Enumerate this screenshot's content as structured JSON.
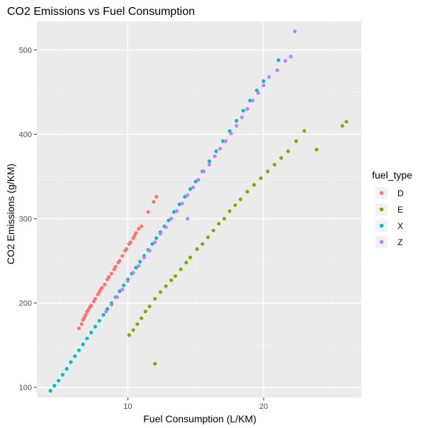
{
  "chart_data": {
    "type": "scatter",
    "title": "CO2 Emissions vs Fuel Consumption",
    "xlabel": "Fuel Consumption (L/KM)",
    "ylabel": "CO2 Emissions (g/KM)",
    "xlim": [
      3.3,
      27.2
    ],
    "ylim": [
      88,
      534
    ],
    "x_ticks": [
      10,
      20
    ],
    "x_minor_ticks": [
      5,
      15,
      25
    ],
    "y_ticks": [
      100,
      200,
      300,
      400,
      500
    ],
    "y_minor_ticks": [
      150,
      250,
      350,
      450
    ],
    "grid": true,
    "background": "#ebebeb",
    "legend": {
      "title": "fuel_type",
      "position": "right",
      "entries": [
        {
          "label": "D",
          "color": "#f8766d"
        },
        {
          "label": "E",
          "color": "#7cae00"
        },
        {
          "label": "X",
          "color": "#00bfc4"
        },
        {
          "label": "Z",
          "color": "#c77cff"
        }
      ]
    },
    "series": [
      {
        "name": "D",
        "color": "#f8766d",
        "points": [
          [
            6.4,
            170
          ],
          [
            6.6,
            175
          ],
          [
            6.7,
            180
          ],
          [
            6.8,
            183
          ],
          [
            6.9,
            186
          ],
          [
            7.0,
            190
          ],
          [
            7.1,
            192
          ],
          [
            7.2,
            195
          ],
          [
            7.3,
            197
          ],
          [
            7.5,
            202
          ],
          [
            7.6,
            205
          ],
          [
            7.8,
            210
          ],
          [
            7.9,
            213
          ],
          [
            8.0,
            216
          ],
          [
            8.1,
            218
          ],
          [
            8.3,
            222
          ],
          [
            8.5,
            228
          ],
          [
            8.6,
            231
          ],
          [
            8.8,
            235
          ],
          [
            9.0,
            240
          ],
          [
            9.1,
            243
          ],
          [
            9.3,
            248
          ],
          [
            9.4,
            250
          ],
          [
            9.6,
            256
          ],
          [
            9.8,
            262
          ],
          [
            9.9,
            264
          ],
          [
            10.1,
            270
          ],
          [
            10.2,
            272
          ],
          [
            10.4,
            277
          ],
          [
            10.5,
            280
          ],
          [
            10.6,
            283
          ],
          [
            10.8,
            288
          ],
          [
            11.0,
            291
          ],
          [
            11.5,
            308
          ],
          [
            11.9,
            320
          ],
          [
            12.1,
            326
          ]
        ]
      },
      {
        "name": "E",
        "color": "#7cae00",
        "points": [
          [
            10.1,
            162
          ],
          [
            10.4,
            168
          ],
          [
            10.7,
            175
          ],
          [
            11.0,
            182
          ],
          [
            11.3,
            190
          ],
          [
            11.6,
            196
          ],
          [
            12.0,
            205
          ],
          [
            12.4,
            213
          ],
          [
            12.8,
            220
          ],
          [
            13.2,
            227
          ],
          [
            13.5,
            232
          ],
          [
            13.9,
            240
          ],
          [
            14.3,
            248
          ],
          [
            14.6,
            254
          ],
          [
            15.1,
            264
          ],
          [
            15.5,
            270
          ],
          [
            15.9,
            278
          ],
          [
            16.3,
            286
          ],
          [
            16.7,
            294
          ],
          [
            17.1,
            300
          ],
          [
            17.5,
            309
          ],
          [
            17.9,
            316
          ],
          [
            18.3,
            323
          ],
          [
            18.8,
            332
          ],
          [
            19.3,
            340
          ],
          [
            19.8,
            348
          ],
          [
            20.3,
            356
          ],
          [
            20.8,
            364
          ],
          [
            21.3,
            372
          ],
          [
            21.8,
            380
          ],
          [
            22.4,
            392
          ],
          [
            23.0,
            404
          ],
          [
            23.9,
            382
          ],
          [
            25.8,
            410
          ],
          [
            26.1,
            415
          ],
          [
            12.0,
            128
          ]
        ]
      },
      {
        "name": "X",
        "color": "#00bfc4",
        "points": [
          [
            4.3,
            96
          ],
          [
            4.6,
            102
          ],
          [
            4.9,
            108
          ],
          [
            5.2,
            115
          ],
          [
            5.5,
            122
          ],
          [
            5.8,
            130
          ],
          [
            6.1,
            137
          ],
          [
            6.4,
            144
          ],
          [
            6.7,
            151
          ],
          [
            7.0,
            158
          ],
          [
            7.3,
            165
          ],
          [
            7.6,
            172
          ],
          [
            7.9,
            179
          ],
          [
            8.2,
            186
          ],
          [
            8.5,
            193
          ],
          [
            8.8,
            200
          ],
          [
            9.1,
            207
          ],
          [
            9.4,
            214
          ],
          [
            9.7,
            221
          ],
          [
            10.0,
            228
          ],
          [
            10.3,
            235
          ],
          [
            10.6,
            242
          ],
          [
            10.9,
            249
          ],
          [
            11.2,
            256
          ],
          [
            11.5,
            263
          ],
          [
            11.8,
            270
          ],
          [
            12.1,
            277
          ],
          [
            12.4,
            284
          ],
          [
            12.7,
            291
          ],
          [
            13.0,
            298
          ],
          [
            13.4,
            308
          ],
          [
            13.8,
            317
          ],
          [
            14.2,
            326
          ],
          [
            14.6,
            335
          ],
          [
            15.0,
            344
          ],
          [
            15.5,
            356
          ],
          [
            16.0,
            368
          ],
          [
            16.5,
            380
          ],
          [
            17.0,
            392
          ],
          [
            17.5,
            404
          ],
          [
            18.0,
            416
          ],
          [
            18.5,
            428
          ],
          [
            19.0,
            440
          ],
          [
            19.5,
            452
          ],
          [
            20.0,
            463
          ],
          [
            21.1,
            488
          ]
        ]
      },
      {
        "name": "Z",
        "color": "#c77cff",
        "points": [
          [
            8.4,
            190
          ],
          [
            8.8,
            198
          ],
          [
            9.2,
            207
          ],
          [
            9.6,
            216
          ],
          [
            10.0,
            226
          ],
          [
            10.4,
            236
          ],
          [
            10.8,
            244
          ],
          [
            11.2,
            254
          ],
          [
            11.6,
            262
          ],
          [
            12.0,
            272
          ],
          [
            12.4,
            282
          ],
          [
            12.8,
            290
          ],
          [
            13.2,
            300
          ],
          [
            13.6,
            309
          ],
          [
            14.0,
            318
          ],
          [
            14.4,
            328
          ],
          [
            14.8,
            337
          ],
          [
            15.2,
            346
          ],
          [
            15.6,
            356
          ],
          [
            16.0,
            364
          ],
          [
            16.4,
            374
          ],
          [
            16.8,
            383
          ],
          [
            17.2,
            392
          ],
          [
            17.6,
            401
          ],
          [
            18.0,
            410
          ],
          [
            18.4,
            420
          ],
          [
            18.8,
            430
          ],
          [
            19.2,
            440
          ],
          [
            19.6,
            449
          ],
          [
            20.0,
            458
          ],
          [
            20.4,
            468
          ],
          [
            21.0,
            476
          ],
          [
            21.6,
            487
          ],
          [
            22.0,
            492
          ],
          [
            22.3,
            522
          ],
          [
            14.4,
            300
          ]
        ]
      }
    ]
  }
}
